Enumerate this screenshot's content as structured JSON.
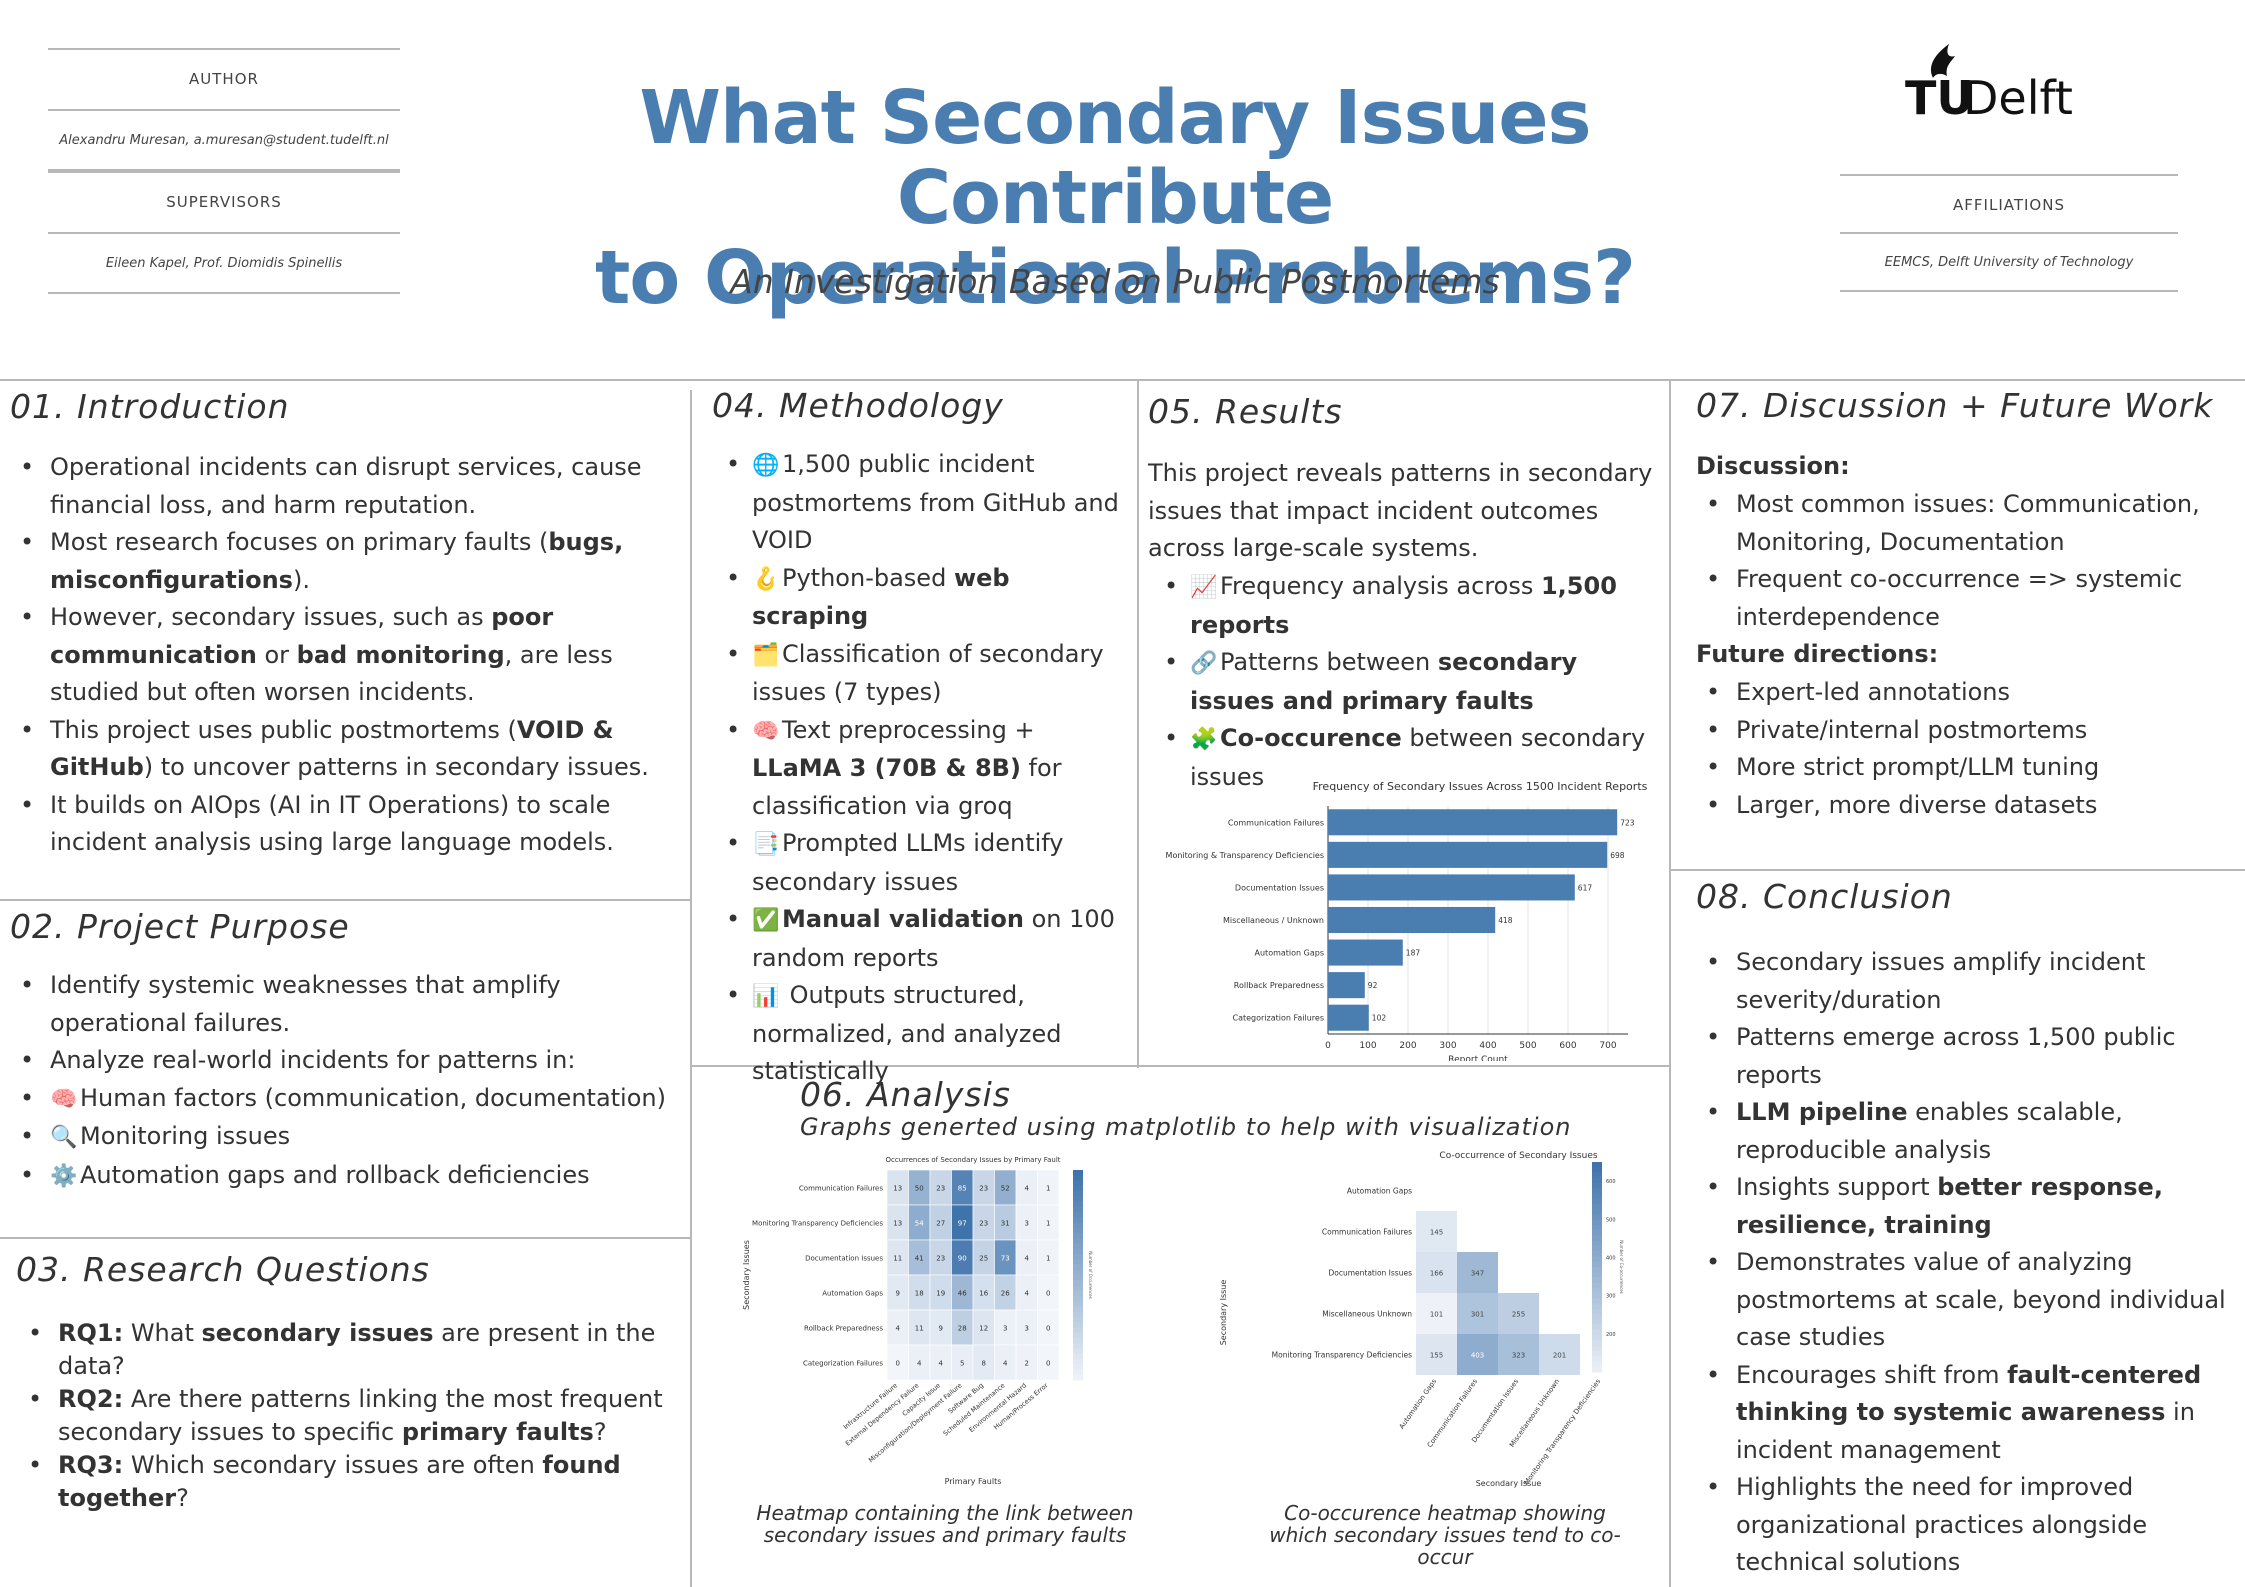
{
  "header": {
    "author_label": "AUTHOR",
    "author_value": "Alexandru Muresan, a.muresan@student.tudelft.nl",
    "supervisors_label": "SUPERVISORS",
    "supervisors_value": "Eileen Kapel, Prof. Diomidis Spinellis",
    "title_line1": "What Secondary Issues Contribute",
    "title_line2": "to Operational Problems?",
    "subtitle": "An Investigation Based on Public Postmortems",
    "logo_text_tu": "TU",
    "logo_text_delft": "Delft",
    "affiliations_label": "AFFILIATIONS",
    "affiliations_value": "EEMCS, Delft University of Technology"
  },
  "intro": {
    "title": "01. Introduction",
    "items": [
      [
        {
          "t": "Operational incidents can disrupt services, cause financial loss, and harm reputation."
        }
      ],
      [
        {
          "t": "Most research focuses on primary faults ("
        },
        {
          "t": "bugs, misconfigurations",
          "b": true
        },
        {
          "t": ")."
        }
      ],
      [
        {
          "t": "However, secondary issues, such as "
        },
        {
          "t": "poor communication",
          "b": true
        },
        {
          "t": " or "
        },
        {
          "t": "bad monitoring",
          "b": true
        },
        {
          "t": ", are less studied but often worsen incidents."
        }
      ],
      [
        {
          "t": "This project uses public postmortems ("
        },
        {
          "t": "VOID & GitHub",
          "b": true
        },
        {
          "t": ") to uncover patterns in secondary issues."
        }
      ],
      [
        {
          "t": "It builds on AIOps (AI in IT Operations) to scale incident analysis using large language models."
        }
      ]
    ]
  },
  "purpose": {
    "title": "02. Project Purpose",
    "items": [
      [
        {
          "t": "Identify systemic weaknesses that amplify operational failures."
        }
      ],
      [
        {
          "t": "Analyze real-world incidents for patterns in:"
        }
      ],
      [
        {
          "e": "🧠"
        },
        {
          "t": "Human factors (communication, documentation)"
        }
      ],
      [
        {
          "e": "🔍"
        },
        {
          "t": "Monitoring issues"
        }
      ],
      [
        {
          "e": "⚙️"
        },
        {
          "t": "Automation gaps and rollback deficiencies"
        }
      ]
    ]
  },
  "rq": {
    "title": "03. Research Questions",
    "items": [
      [
        {
          "t": "RQ1:",
          "b": true
        },
        {
          "t": " What "
        },
        {
          "t": "secondary issues",
          "b": true
        },
        {
          "t": " are present in the data?"
        }
      ],
      [
        {
          "t": "RQ2:",
          "b": true
        },
        {
          "t": " Are there patterns linking the most frequent secondary issues to specific "
        },
        {
          "t": "primary faults",
          "b": true
        },
        {
          "t": "?"
        }
      ],
      [
        {
          "t": "RQ3:",
          "b": true
        },
        {
          "t": " Which secondary issues are often "
        },
        {
          "t": "found together",
          "b": true
        },
        {
          "t": "?"
        }
      ]
    ]
  },
  "methodology": {
    "title": "04. Methodology",
    "items": [
      [
        {
          "e": "🌐"
        },
        {
          "t": "1,500 public incident postmortems from GitHub and VOID"
        }
      ],
      [
        {
          "e": "🪝"
        },
        {
          "t": "Python-based "
        },
        {
          "t": "web scraping",
          "b": true
        }
      ],
      [
        {
          "e": "🗂️"
        },
        {
          "t": "Classification of secondary issues (7 types)"
        }
      ],
      [
        {
          "e": "🧠"
        },
        {
          "t": "Text preprocessing + "
        },
        {
          "t": "LLaMA 3 (70B & 8B)",
          "b": true
        },
        {
          "t": " for classification via groq"
        }
      ],
      [
        {
          "e": "📑"
        },
        {
          "t": "Prompted LLMs identify secondary issues"
        }
      ],
      [
        {
          "e": "✅"
        },
        {
          "t": "Manual validation",
          "b": true
        },
        {
          "t": " on 100 random reports"
        }
      ],
      [
        {
          "e": "📊"
        },
        {
          "t": " Outputs structured, normalized, and analyzed statistically"
        }
      ]
    ]
  },
  "results": {
    "title": "05. Results",
    "intro": "This project reveals patterns in secondary issues that impact incident outcomes across large-scale systems.",
    "items": [
      [
        {
          "e": "📈"
        },
        {
          "t": "Frequency analysis across "
        },
        {
          "t": "1,500 reports",
          "b": true
        }
      ],
      [
        {
          "e": "🔗"
        },
        {
          "t": "Patterns between "
        },
        {
          "t": "secondary issues and primary faults",
          "b": true
        }
      ],
      [
        {
          "e": "🧩"
        },
        {
          "t": "Co-occurence",
          "b": true
        },
        {
          "t": " between secondary issues"
        }
      ]
    ]
  },
  "analysis": {
    "title": "06. Analysis",
    "subtitle": "Graphs generted using matplotlib to help with visualization",
    "caption1": "Heatmap containing the link between secondary issues and primary faults",
    "caption2": "Co-occurence heatmap showing which secondary issues tend to co-occur"
  },
  "discussion": {
    "title": "07. Discussion + Future Work",
    "discussion_label": "Discussion:",
    "discussion_items": [
      [
        {
          "t": "Most common issues: Communication, Monitoring, Documentation"
        }
      ],
      [
        {
          "t": "Frequent co-occurrence => systemic interdependence"
        }
      ]
    ],
    "future_label": "Future directions:",
    "future_items": [
      [
        {
          "t": "Expert-led annotations"
        }
      ],
      [
        {
          "t": "Private/internal postmortems"
        }
      ],
      [
        {
          "t": "More strict prompt/LLM tuning"
        }
      ],
      [
        {
          "t": "Larger, more diverse datasets"
        }
      ]
    ]
  },
  "conclusion": {
    "title": "08. Conclusion",
    "items": [
      [
        {
          "t": "Secondary issues amplify incident severity/duration"
        }
      ],
      [
        {
          "t": "Patterns emerge across 1,500 public reports"
        }
      ],
      [
        {
          "t": "LLM pipeline",
          "b": true
        },
        {
          "t": " enables scalable, reproducible analysis"
        }
      ],
      [
        {
          "t": "Insights support "
        },
        {
          "t": "better response, resilience, training",
          "b": true
        }
      ],
      [
        {
          "t": "Demonstrates value of analyzing postmortems at scale, beyond individual case studies"
        }
      ],
      [
        {
          "t": "Encourages shift from "
        },
        {
          "t": "fault-centered thinking to systemic awareness",
          "b": true
        },
        {
          "t": " in incident management"
        }
      ],
      [
        {
          "t": "Highlights the need for improved organizational practices alongside technical solutions"
        }
      ]
    ]
  },
  "chart_data": [
    {
      "type": "bar",
      "orientation": "horizontal",
      "title": "Frequency of Secondary Issues Across 1500 Incident Reports",
      "xlabel": "Report Count",
      "ylabel": "",
      "categories": [
        "Communication Failures",
        "Monitoring & Transparency Deficiencies",
        "Documentation Issues",
        "Miscellaneous / Unknown",
        "Automation Gaps",
        "Rollback Preparedness",
        "Categorization Failures"
      ],
      "values": [
        723,
        698,
        617,
        418,
        187,
        92,
        102
      ],
      "xlim": [
        0,
        750
      ],
      "xticks": [
        0,
        100,
        200,
        300,
        400,
        500,
        600,
        700
      ],
      "grid": true,
      "color": "#4a7eb0"
    },
    {
      "type": "heatmap",
      "title": "Occurrences of Secondary Issues by Primary Fault",
      "xlabel": "Primary Faults",
      "ylabel": "Secondary Issues",
      "rows": [
        "Communication Failures",
        "Monitoring Transparency Deficiencies",
        "Documentation Issues",
        "Automation Gaps",
        "Rollback Preparedness",
        "Categorization Failures"
      ],
      "cols": [
        "Infrastructure Failure",
        "External Dependency Failure",
        "Capacity Issue",
        "Misconfiguration/Deployment Failure",
        "Software Bug",
        "Scheduled Maintenance",
        "Environmental Hazard",
        "Human/Process Error"
      ],
      "values": [
        [
          13,
          50,
          23,
          85,
          23,
          52,
          4,
          1
        ],
        [
          13,
          54,
          27,
          97,
          23,
          31,
          3,
          1
        ],
        [
          11,
          41,
          23,
          90,
          25,
          73,
          4,
          1
        ],
        [
          9,
          18,
          19,
          46,
          16,
          26,
          4,
          0
        ],
        [
          4,
          11,
          9,
          28,
          12,
          3,
          3,
          0
        ],
        [
          0,
          4,
          4,
          5,
          8,
          4,
          2,
          0
        ]
      ],
      "colorbar_label": "Number of Occurrences"
    },
    {
      "type": "heatmap",
      "title": "Co-occurrence of Secondary Issues",
      "xlabel": "Secondary Issue",
      "ylabel": "Secondary Issue",
      "rows": [
        "Automation Gaps",
        "Communication Failures",
        "Documentation Issues",
        "Miscellaneous Unknown",
        "Monitoring Transparency Deficiencies"
      ],
      "cols": [
        "Automation Gaps",
        "Communication Failures",
        "Documentation Issues",
        "Miscellaneous Unknown",
        "Monitoring Transparency Deficiencies"
      ],
      "values": [
        [
          null,
          null,
          null,
          null,
          null
        ],
        [
          145,
          null,
          null,
          null,
          null
        ],
        [
          166,
          347,
          null,
          null,
          null
        ],
        [
          101,
          301,
          255,
          null,
          null
        ],
        [
          155,
          403,
          323,
          201,
          null
        ]
      ],
      "colorbar_ticks": [
        200,
        300,
        400,
        500,
        600
      ],
      "colorbar_label": "Number of Co-occurrences"
    }
  ]
}
